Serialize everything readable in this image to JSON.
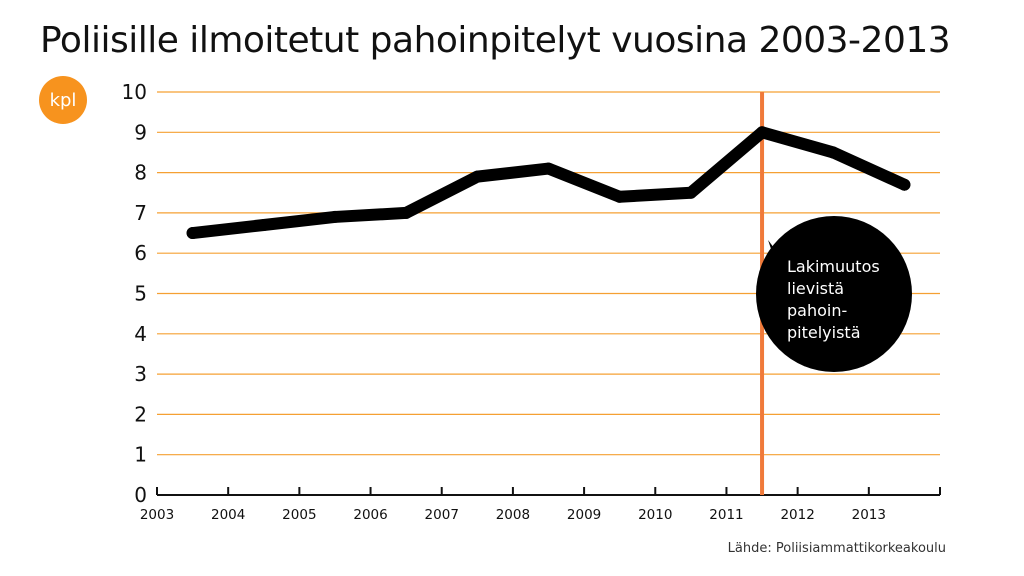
{
  "chart_data": {
    "type": "line",
    "title": "Poliisille ilmoitetut pahoinpitelyt vuosina 2003-2013",
    "unit_badge": "kpl",
    "categories": [
      "2003",
      "2004",
      "2005",
      "2006",
      "2007",
      "2008",
      "2009",
      "2010",
      "2011",
      "2012",
      "2013"
    ],
    "series": [
      {
        "values": [
          6.5,
          6.7,
          6.9,
          7.0,
          7.9,
          8.1,
          7.4,
          7.5,
          9.0,
          8.5,
          7.7
        ]
      }
    ],
    "ylim": [
      0,
      10
    ],
    "yticks": [
      "0",
      "1",
      "2",
      "3",
      "4",
      "5",
      "6",
      "7",
      "8",
      "9",
      "10"
    ],
    "grid": true,
    "marker_between": [
      "2010",
      "2011"
    ],
    "annotation": {
      "lines": [
        "Lakimuutos",
        "lievistä",
        "pahoin-",
        "pitelyistä"
      ]
    },
    "source": "Lähde: Poliisiammattikorkeakoulu",
    "colors": {
      "line": "#000000",
      "grid": "#f5a033",
      "marker": "#f07a3a",
      "badge": "#f7931e",
      "callout": "#000000"
    }
  }
}
